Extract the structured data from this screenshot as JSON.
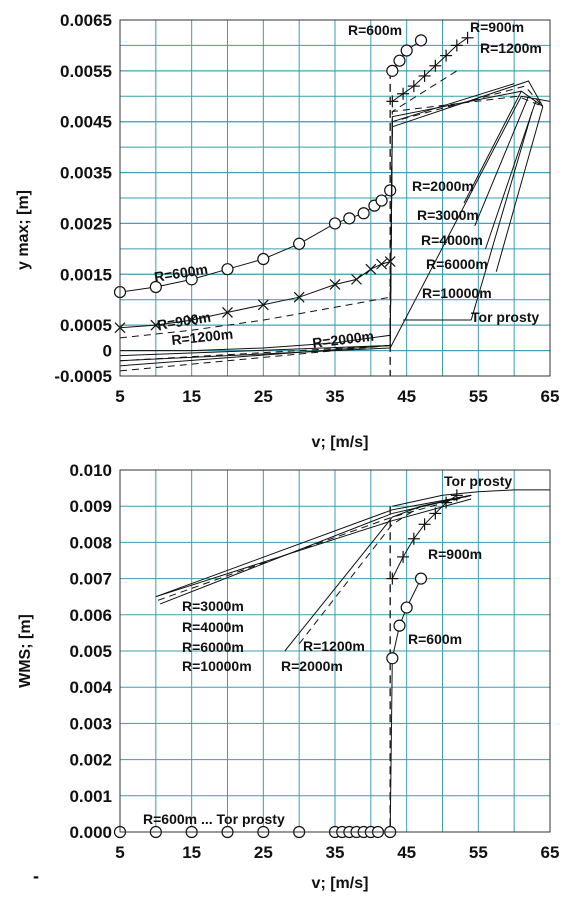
{
  "chart_data": [
    {
      "type": "line",
      "xlabel": "v; [m/s]",
      "ylabel": "y max; [m]",
      "xlim": [
        5,
        65
      ],
      "ylim": [
        -0.0005,
        0.0065
      ],
      "x_ticks": [
        "5",
        "15",
        "25",
        "35",
        "45",
        "55",
        "65"
      ],
      "y_ticks": [
        "0.0065",
        "0.0055",
        "0.0045",
        "0.0035",
        "0.0025",
        "0.0015",
        "0.0005",
        "0",
        "-0.0005"
      ],
      "annotations": [
        "R=600m",
        "R=900m",
        "R=1200m",
        "R=600m",
        "R=900m",
        "R=1200m",
        "R=2000m",
        "R=2000m",
        "R=3000m",
        "R=4000m",
        "R=6000m",
        "R=10000m",
        "Tor prosty"
      ],
      "series": [
        {
          "name": "R=600m",
          "marker": "circle",
          "line": "solid",
          "x": [
            5,
            10,
            15,
            20,
            25,
            30,
            35,
            37,
            39,
            40.5,
            41.5,
            42.7
          ],
          "y": [
            0.00115,
            0.00125,
            0.0014,
            0.0016,
            0.0018,
            0.0021,
            0.0025,
            0.0026,
            0.0027,
            0.00285,
            0.00295,
            0.00315
          ]
        },
        {
          "name": "R=600m",
          "marker": "circle",
          "line": "solid",
          "x": [
            43,
            44,
            45,
            47
          ],
          "y": [
            0.0055,
            0.0057,
            0.0059,
            0.0061
          ]
        },
        {
          "name": "R=900m",
          "marker": "x",
          "line": "solid",
          "x": [
            5,
            10,
            15,
            20,
            25,
            30,
            35,
            38,
            40,
            41.5,
            42.7
          ],
          "y": [
            0.00045,
            0.0005,
            0.0006,
            0.00075,
            0.0009,
            0.00105,
            0.0013,
            0.0014,
            0.0016,
            0.0017,
            0.00175
          ]
        },
        {
          "name": "R=900m",
          "marker": "plus",
          "line": "solid",
          "x": [
            43,
            44.5,
            46,
            47.5,
            49,
            50.5,
            52,
            53.5
          ],
          "y": [
            0.0049,
            0.00505,
            0.0052,
            0.0054,
            0.0056,
            0.0058,
            0.006,
            0.00615
          ]
        },
        {
          "name": "R=1200m",
          "marker": "none",
          "line": "dashed",
          "x": [
            5,
            15,
            25,
            35,
            42.7,
            43,
            52
          ],
          "y": [
            0.00025,
            0.0004,
            0.0006,
            0.00085,
            0.00105,
            0.0047,
            0.0055
          ]
        },
        {
          "name": "R=2000m",
          "marker": "none",
          "line": "solid",
          "x": [
            5,
            15,
            25,
            35,
            42.7,
            43,
            60
          ],
          "y": [
            0.0,
            0.0,
            5e-05,
            0.00015,
            0.0003,
            0.0045,
            0.00525
          ]
        },
        {
          "name": "Tor prosty",
          "marker": "none",
          "line": "solid",
          "x": [
            5,
            42.7,
            61,
            65
          ],
          "y": [
            -0.0002,
            5e-05,
            0.005,
            0.0049
          ]
        }
      ]
    },
    {
      "type": "line",
      "xlabel": "v; [m/s]",
      "ylabel": "WMS; [m]",
      "xlim": [
        5,
        65
      ],
      "ylim": [
        0.0,
        0.01
      ],
      "x_ticks": [
        "5",
        "15",
        "25",
        "35",
        "45",
        "55",
        "65"
      ],
      "y_ticks": [
        "0.010",
        "0.009",
        "0.008",
        "0.007",
        "0.006",
        "0.005",
        "0.004",
        "0.003",
        "0.002",
        "0.001",
        "0.000"
      ],
      "annotations": [
        "Tor prosty",
        "R=900m",
        "R=3000m",
        "R=4000m",
        "R=6000m",
        "R=10000m",
        "R=1200m",
        "R=2000m",
        "R=600m",
        "R=600m ... Tor prosty"
      ],
      "series": [
        {
          "name": "R=600m",
          "marker": "circle",
          "line": "solid",
          "x": [
            5,
            10,
            15,
            20,
            25,
            30,
            35,
            36,
            37,
            38,
            39,
            40,
            41,
            42.7,
            43,
            44,
            45,
            47
          ],
          "y": [
            0,
            0,
            0,
            0,
            0,
            0,
            0,
            0,
            0,
            0,
            0,
            0,
            0,
            0,
            0.0048,
            0.0057,
            0.0062,
            0.007
          ]
        },
        {
          "name": "R=900m",
          "marker": "plus",
          "line": "solid",
          "x": [
            43,
            44.5,
            46,
            47.5,
            49,
            50.5,
            52
          ],
          "y": [
            0.007,
            0.0076,
            0.0081,
            0.0085,
            0.0088,
            0.0091,
            0.0093
          ]
        },
        {
          "name": "R=1200m",
          "marker": "none",
          "line": "dashed",
          "x": [
            30,
            43,
            47,
            54
          ],
          "y": [
            0.0052,
            0.0085,
            0.009,
            0.0093
          ]
        },
        {
          "name": "R=2000m",
          "marker": "none",
          "line": "solid",
          "x": [
            28,
            43,
            47,
            54
          ],
          "y": [
            0.005,
            0.0087,
            0.009,
            0.0093
          ]
        },
        {
          "name": "R=3000m",
          "marker": "none",
          "line": "solid",
          "x": [
            10,
            43,
            54
          ],
          "y": [
            0.0065,
            0.0089,
            0.0093
          ]
        },
        {
          "name": "Tor prosty",
          "marker": "none",
          "line": "solid",
          "x": [
            43,
            50,
            55,
            60,
            65
          ],
          "y": [
            0.009,
            0.0093,
            0.0094,
            0.00945,
            0.00945
          ]
        }
      ]
    }
  ],
  "extra": {
    "stray_mark": "-"
  }
}
